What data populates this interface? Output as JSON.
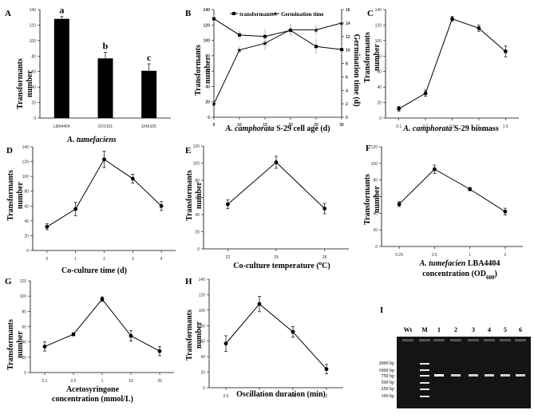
{
  "chart_data": [
    {
      "id": "A",
      "type": "bar",
      "categories": [
        "LBA4404",
        "GV3101",
        "EHA105"
      ],
      "values": [
        128,
        77,
        61
      ],
      "errors": [
        3,
        8,
        9
      ],
      "labels": [
        "a",
        "b",
        "c"
      ],
      "xlabel": "A. tumefaciens",
      "ylabel": "Transformants number",
      "ylim": [
        0,
        140
      ],
      "yticks": [
        0,
        20,
        40,
        60,
        80,
        100,
        120,
        140
      ]
    },
    {
      "id": "B",
      "type": "line",
      "x": [
        5,
        10,
        15,
        20,
        25,
        30
      ],
      "series": [
        {
          "name": "transformants",
          "axis": "left",
          "values": [
            128,
            107,
            105,
            113,
            92,
            88
          ],
          "errors": [
            5,
            6,
            10,
            8,
            10,
            6
          ]
        },
        {
          "name": "Germination time",
          "axis": "right",
          "values": [
            2,
            10,
            11,
            13,
            13,
            14
          ],
          "errors": [
            0.3,
            0.5,
            1,
            0.7,
            0.8,
            0.5
          ]
        }
      ],
      "xlabel": "A. camphorata S-29 cell age (d)",
      "ylabel": "Transformants number",
      "y2label": "Germination time (d)",
      "xlim": [
        5,
        30
      ],
      "xticks": [
        5,
        10,
        15,
        20,
        25,
        30
      ],
      "ylim": [
        0,
        140
      ],
      "yticks": [
        0,
        20,
        40,
        60,
        80,
        100,
        120,
        140
      ],
      "y2lim": [
        0,
        16
      ],
      "y2ticks": [
        0,
        2,
        4,
        6,
        8,
        10,
        12,
        14,
        16
      ]
    },
    {
      "id": "C",
      "type": "line",
      "categories": [
        "0.1",
        "0.2",
        "0.5",
        "1",
        "1.5"
      ],
      "values": [
        12,
        32,
        128,
        116,
        86
      ],
      "errors": [
        3,
        4,
        3,
        4,
        7
      ],
      "xlabel": "A. camphorata S-29 biomass",
      "ylabel": "Transformants number",
      "ylim": [
        0,
        140
      ],
      "yticks": [
        0,
        20,
        40,
        60,
        80,
        100,
        120,
        140
      ]
    },
    {
      "id": "D",
      "type": "line",
      "categories": [
        "0",
        "1",
        "2",
        "3",
        "4"
      ],
      "values": [
        32,
        56,
        123,
        97,
        60
      ],
      "errors": [
        4,
        9,
        11,
        6,
        6
      ],
      "xlabel": "Co-culture time (d)",
      "ylabel": "Transformants number",
      "ylim": [
        0,
        140
      ],
      "yticks": [
        0,
        20,
        40,
        60,
        80,
        100,
        120,
        140
      ]
    },
    {
      "id": "E",
      "type": "line",
      "categories": [
        "22",
        "25",
        "28"
      ],
      "values": [
        52,
        101,
        47
      ],
      "errors": [
        5,
        7,
        6
      ],
      "xlabel": "Co-culture temperature (°C)",
      "ylabel": "Transformants number",
      "ylim": [
        0,
        120
      ],
      "yticks": [
        0,
        20,
        40,
        60,
        80,
        100,
        120
      ]
    },
    {
      "id": "F",
      "type": "line",
      "categories": [
        "0.25",
        "0.5",
        "1",
        "2"
      ],
      "values": [
        51,
        93,
        69,
        42
      ],
      "errors": [
        3,
        5,
        2,
        4
      ],
      "xlabel": "A. tumefacien LBA4404 concentration (OD600)",
      "ylabel": "Transformants number",
      "ylim": [
        0,
        120
      ],
      "yticks": [
        0,
        20,
        40,
        60,
        80,
        100,
        120
      ]
    },
    {
      "id": "G",
      "type": "line",
      "categories": [
        "0.1",
        "0.5",
        "1",
        "10",
        "20"
      ],
      "values": [
        34,
        50,
        96,
        48,
        28
      ],
      "errors": [
        6,
        2,
        3,
        7,
        6
      ],
      "xlabel": "Acetosyringone concentration (mmol/L)",
      "ylabel": "Transformants number",
      "ylim": [
        0,
        120
      ],
      "yticks": [
        0,
        20,
        40,
        60,
        80,
        100,
        120
      ]
    },
    {
      "id": "H",
      "type": "line",
      "categories": [
        "0.5",
        "1",
        "1.5",
        "2"
      ],
      "values": [
        57,
        108,
        72,
        24
      ],
      "errors": [
        10,
        10,
        7,
        6
      ],
      "xlabel": "Oscillation duration (min)",
      "ylabel": "Transformants number",
      "ylim": [
        0,
        140
      ],
      "yticks": [
        0,
        20,
        40,
        60,
        80,
        100,
        120,
        140
      ]
    }
  ],
  "gel": {
    "letter": "I",
    "lanes": [
      "Wt",
      "M",
      "1",
      "2",
      "3",
      "4",
      "5",
      "6"
    ],
    "markers": [
      "2000 bp",
      "1000 bp",
      "750 bp",
      "500 bp",
      "250 bp",
      "100 bp"
    ]
  },
  "texts": {
    "A_xlab_i": "A. tumefaciens",
    "B_xlab_i": "A. camphorata",
    "B_xlab_r": " S-29 cell age (d)",
    "C_xlab_i": "A. camphorata",
    "C_xlab_r": " S-29 biomass",
    "D_xlab": "Co-culture time (d)",
    "E_xlab_a": "Co-culture temperature (",
    "E_xlab_sup": "o",
    "E_xlab_b": "C)",
    "F_xlab1_i": "A. tumefacien",
    "F_xlab1_r": " LBA4404",
    "F_xlab2_a": "concentration (OD",
    "F_xlab2_sub": "600",
    "F_xlab2_b": ")",
    "G_xlab1": "Acetosyringone",
    "G_xlab2": "concentration (mmol/L)",
    "H_xlab": "Oscillation duration (min)",
    "ylab1": "Transformants",
    "ylab2": "number",
    "y2lab": "Germination time (d)",
    "legend1": "transformants",
    "legend2": "Germination time"
  }
}
